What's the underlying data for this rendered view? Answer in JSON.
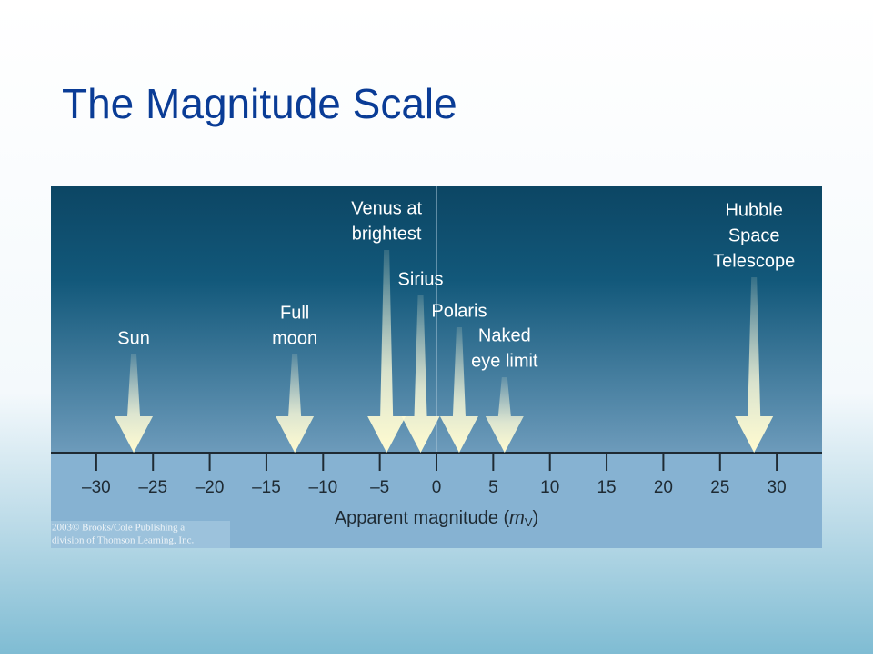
{
  "slide": {
    "title": "The Magnitude Scale"
  },
  "credit": [
    "2003© Brooks/Cole Publishing a",
    "division of Thomson Learning, Inc."
  ],
  "chart_data": {
    "type": "arrow",
    "categories": [
      [
        "Sun"
      ],
      [
        "Full",
        "moon"
      ],
      [
        "Venus at",
        "brightest"
      ],
      [
        "Sirius"
      ],
      [
        "Polaris"
      ],
      [
        "Naked",
        "eye limit"
      ],
      [
        "Hubble",
        "Space",
        "Telescope"
      ]
    ],
    "values": [
      -26.7,
      -12.5,
      -4.4,
      -1.4,
      2,
      6,
      28
    ],
    "xlim": [
      -34,
      34
    ],
    "xticks": [
      {
        "value": -30,
        "label": "–30"
      },
      {
        "value": -25,
        "label": "–25"
      },
      {
        "value": -20,
        "label": "–20"
      },
      {
        "value": -15,
        "label": "–15"
      },
      {
        "value": -10,
        "label": "–10"
      },
      {
        "value": -5,
        "label": "–5"
      },
      0,
      5,
      10,
      15,
      20,
      25,
      30
    ],
    "xlabel": {
      "text": "Apparent magnitude (",
      "var": "m",
      "sub": "V",
      "close": ")"
    }
  }
}
